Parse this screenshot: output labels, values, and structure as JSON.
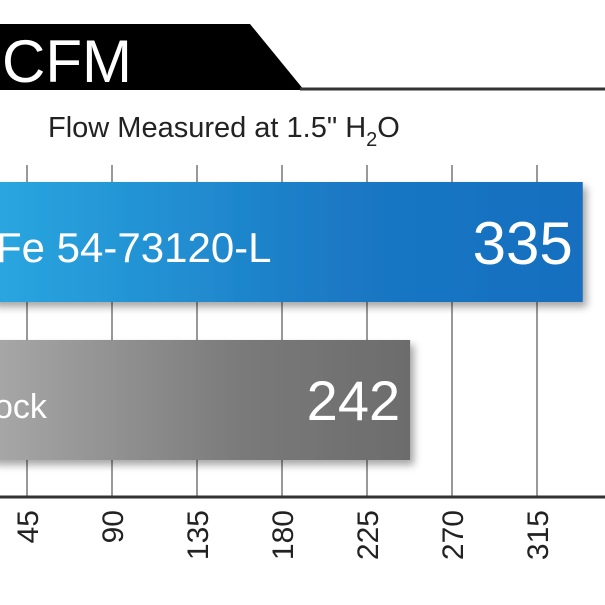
{
  "chart_data": {
    "type": "bar",
    "orientation": "horizontal",
    "title": "CFM",
    "subtitle": "Flow Measured at 1.5\" H",
    "subtitle_sub": "2",
    "subtitle_end": "O",
    "categories": [
      "Fe 54-73120-L",
      "ock"
    ],
    "values": [
      335,
      242
    ],
    "value_labels": [
      "335",
      "242"
    ],
    "x_ticks": [
      45,
      90,
      135,
      180,
      225,
      270,
      315
    ],
    "x_tick_labels": [
      "45",
      "90",
      "135",
      "180",
      "225",
      "270",
      "315"
    ],
    "grid": true,
    "colors": {
      "bar1": "#1f8ad6",
      "bar2": "#8a8a8a",
      "banner": "#000000"
    }
  }
}
